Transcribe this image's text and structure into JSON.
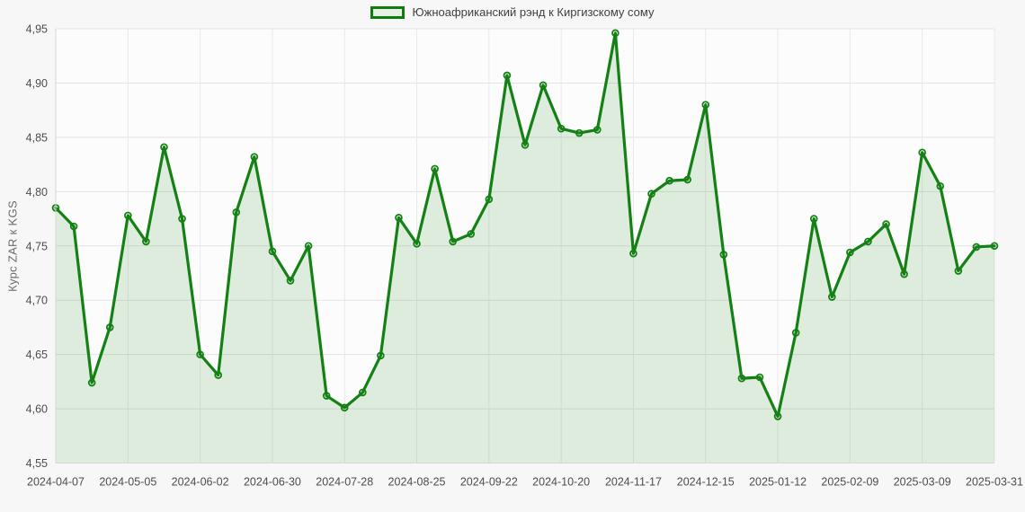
{
  "legend": {
    "label": "Южноафриканский рэнд к Киргизскому сому",
    "swatch_border": "#0d7d0d",
    "swatch_fill": "#e7f1e3"
  },
  "y_axis": {
    "title": "Курс ZAR к KGS",
    "ticks": [
      "4,95",
      "4,90",
      "4,85",
      "4,80",
      "4,75",
      "4,70",
      "4,65",
      "4,60",
      "4,55"
    ]
  },
  "x_axis": {
    "labels": [
      "2024-04-07",
      "2024-05-05",
      "2024-06-02",
      "2024-06-30",
      "2024-07-28",
      "2024-08-25",
      "2024-09-22",
      "2024-10-20",
      "2024-11-17",
      "2024-12-15",
      "2025-01-12",
      "2025-02-09",
      "2025-03-09",
      "2025-03-31"
    ],
    "label_every": 4
  },
  "chart_data": {
    "type": "line",
    "fill_area": true,
    "marker": "hollow-circle",
    "grid": true,
    "legend_position": "top-center",
    "title": "Южноафриканский рэнд к Киргизскому сому",
    "xlabel": "",
    "ylabel": "Курс ZAR к KGS",
    "ylim": [
      4.55,
      4.95
    ],
    "y_tick_step": 0.05,
    "x_labels": [
      "2024-04-07",
      "2024-05-05",
      "2024-06-02",
      "2024-06-30",
      "2024-07-28",
      "2024-08-25",
      "2024-09-22",
      "2024-10-20",
      "2024-11-17",
      "2024-12-15",
      "2025-01-12",
      "2025-02-09",
      "2025-03-09",
      "2025-03-31"
    ],
    "label_interval": 4,
    "series": [
      {
        "name": "Южноафриканский рэнд к Киргизскому сому",
        "values": [
          4.785,
          4.768,
          4.624,
          4.675,
          4.778,
          4.754,
          4.841,
          4.775,
          4.65,
          4.631,
          4.781,
          4.832,
          4.745,
          4.718,
          4.75,
          4.612,
          4.601,
          4.615,
          4.649,
          4.776,
          4.752,
          4.821,
          4.754,
          4.761,
          4.793,
          4.907,
          4.843,
          4.898,
          4.858,
          4.854,
          4.857,
          4.946,
          4.743,
          4.798,
          4.81,
          4.811,
          4.88,
          4.742,
          4.628,
          4.629,
          4.593,
          4.67,
          4.775,
          4.703,
          4.744,
          4.754,
          4.77,
          4.724,
          4.836,
          4.805,
          4.727,
          4.749,
          4.75
        ]
      }
    ],
    "colors": {
      "line": "#148114",
      "area_fill": "rgba(20,129,20,0.13)",
      "plot_background": "#fcfcfc",
      "grid_horizontal": "#e3e3e3",
      "grid_vertical": "#e9e9e9",
      "axis_line": "#d7d7d7",
      "tick_text": "#4d4d4d"
    }
  }
}
